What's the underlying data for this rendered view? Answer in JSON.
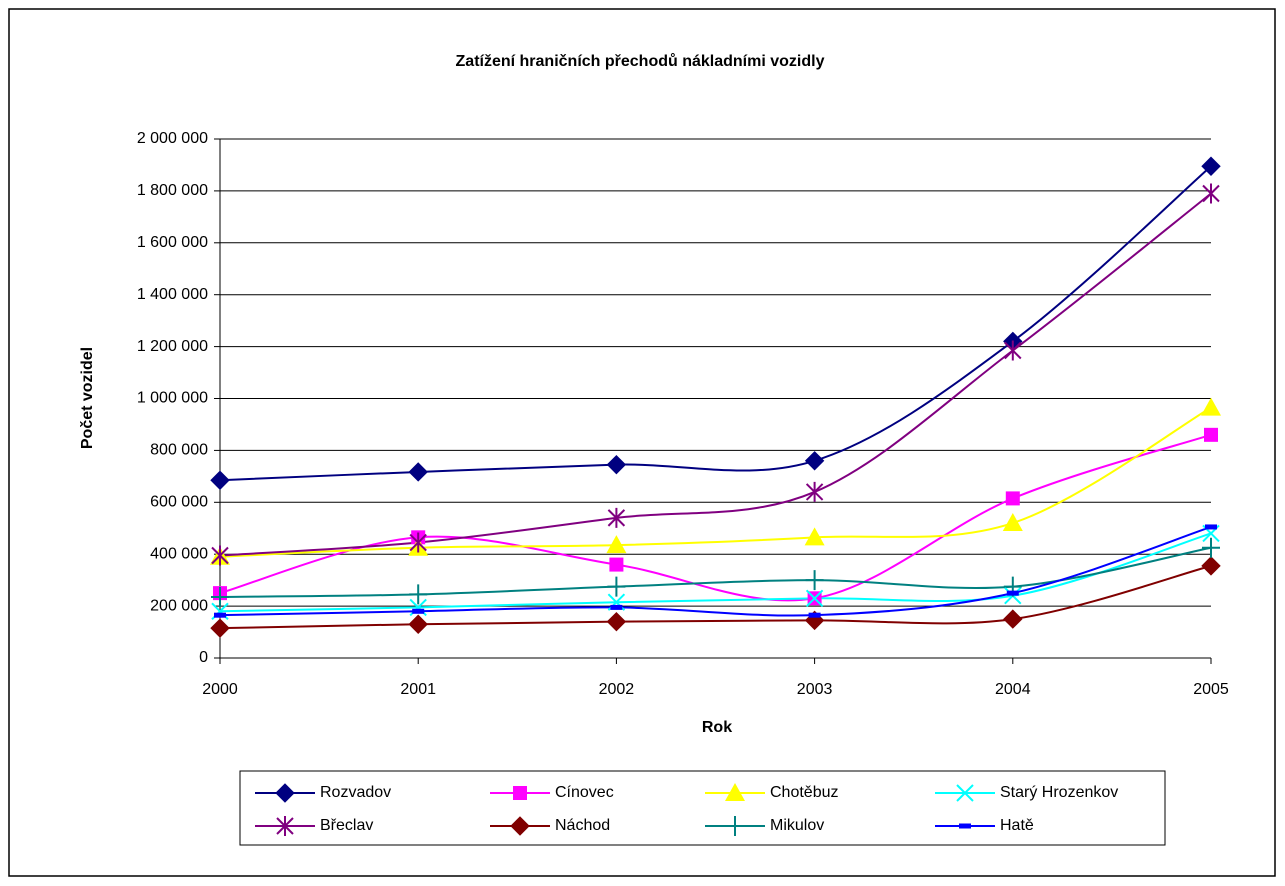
{
  "chart_data": {
    "type": "line",
    "title": "Zatížení hraničních přechodů nákladními vozidly",
    "x_label": "Rok",
    "y_label": "Počet vozidel",
    "categories": [
      "2000",
      "2001",
      "2002",
      "2003",
      "2004",
      "2005"
    ],
    "ylim": [
      0,
      2000000
    ],
    "yticks": [
      0,
      {
        "value": 200000,
        "label": "200 000"
      },
      {
        "value": 400000,
        "label": "400 000"
      },
      {
        "value": 600000,
        "label": "600 000"
      },
      {
        "value": 800000,
        "label": "800 000"
      },
      {
        "value": 1000000,
        "label": "1 000 000"
      },
      {
        "value": 1200000,
        "label": "1 200 000"
      },
      {
        "value": 1400000,
        "label": "1 400 000"
      },
      {
        "value": 1600000,
        "label": "1 600 000"
      },
      {
        "value": 1800000,
        "label": "1 800 000"
      },
      {
        "value": 2000000,
        "label": "2 000 000"
      }
    ],
    "grid": true,
    "smooth": true,
    "legend": "bottom",
    "series": [
      {
        "name": "Rozvadov",
        "color": "#000080",
        "marker": "diamond",
        "values": [
          685000,
          717000,
          745000,
          760000,
          1220000,
          1895000
        ]
      },
      {
        "name": "Cínovec",
        "color": "#ff00ff",
        "marker": "square",
        "values": [
          250000,
          465000,
          360000,
          230000,
          615000,
          860000
        ]
      },
      {
        "name": "Chotěbuz",
        "color": "#ffff00",
        "marker": "triangle",
        "values": [
          390000,
          425000,
          435000,
          465000,
          520000,
          965000
        ]
      },
      {
        "name": "Starý Hrozenkov",
        "color": "#00ffff",
        "marker": "x",
        "values": [
          180000,
          195000,
          215000,
          230000,
          240000,
          480000
        ]
      },
      {
        "name": "Břeclav",
        "color": "#800080",
        "marker": "star",
        "values": [
          395000,
          445000,
          540000,
          640000,
          1185000,
          1790000
        ]
      },
      {
        "name": "Náchod",
        "color": "#800000",
        "marker": "diamond",
        "values": [
          115000,
          130000,
          140000,
          145000,
          150000,
          355000
        ]
      },
      {
        "name": "Mikulov",
        "color": "#008080",
        "marker": "plus",
        "values": [
          235000,
          245000,
          275000,
          300000,
          275000,
          425000
        ]
      },
      {
        "name": "Hatě",
        "color": "#0000ff",
        "marker": "dash",
        "values": [
          165000,
          180000,
          195000,
          165000,
          250000,
          505000
        ]
      }
    ]
  }
}
